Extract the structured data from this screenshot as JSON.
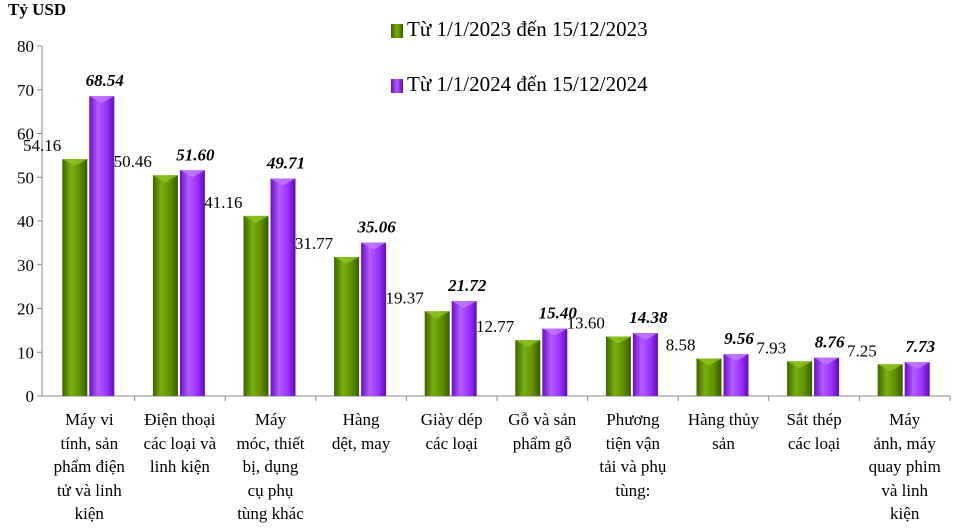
{
  "chart_data": {
    "type": "bar",
    "ylabel": "Tỷ USD",
    "ylim": [
      0,
      80
    ],
    "yticks": [
      0,
      10,
      20,
      30,
      40,
      50,
      60,
      70,
      80
    ],
    "grid": false,
    "legend_position": "top-center",
    "categories": [
      "Máy vi\ntính, sản\nphẩm điện\ntử và linh\nkiện",
      "Điện thoại\ncác loại và\nlinh kiện",
      "Máy\nmóc, thiết\nbị, dụng\ncụ phụ\ntùng khác",
      "Hàng\ndệt, may",
      "Giày dép\ncác loại",
      "Gỗ và sản\nphẩm gỗ",
      "Phương\ntiện vận\ntải và phụ\ntùng:",
      "Hàng thủy\nsản",
      "Sắt thép\ncác loại",
      "Máy\nảnh, máy\nquay phim\nvà linh\nkiện"
    ],
    "series": [
      {
        "name": "Từ 1/1/2023 đến 15/12/2023",
        "color": "#5f8f00",
        "values": [
          54.16,
          50.46,
          41.16,
          31.77,
          19.37,
          12.77,
          13.6,
          8.58,
          7.93,
          7.25
        ],
        "labels": [
          "54.16",
          "50.46",
          "41.16",
          "31.77",
          "19.37",
          "12.77",
          "13.60",
          "8.58",
          "7.93",
          "7.25"
        ]
      },
      {
        "name": "Từ 1/1/2024 đến 15/12/2024",
        "color": "#9b30ff",
        "values": [
          68.54,
          51.6,
          49.71,
          35.06,
          21.72,
          15.4,
          14.38,
          9.56,
          8.76,
          7.73
        ],
        "labels": [
          "68.54",
          "51.60",
          "49.71",
          "35.06",
          "21.72",
          "15.40",
          "14.38",
          "9.56",
          "8.76",
          "7.73"
        ]
      }
    ]
  }
}
